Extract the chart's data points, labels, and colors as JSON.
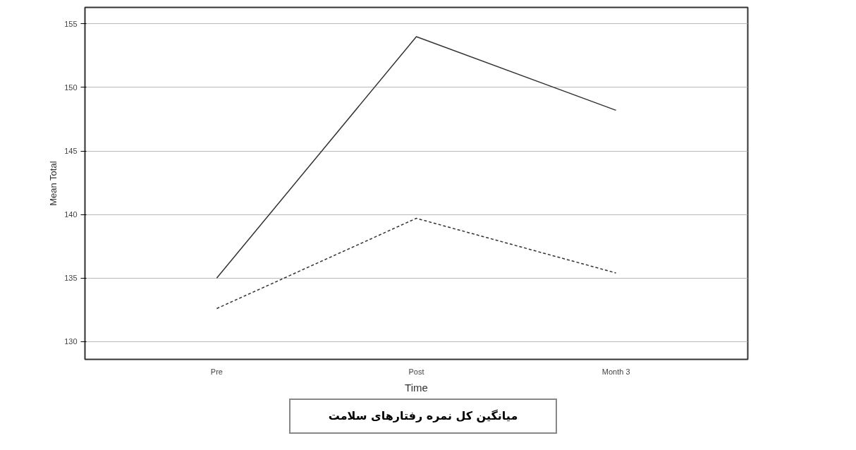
{
  "chart_data": {
    "type": "line",
    "xlabel": "Time",
    "ylabel": "Mean Total",
    "categories": [
      "Pre",
      "Post",
      "Month 3"
    ],
    "series": [
      {
        "color": "#333333",
        "line_style": "solid",
        "values": [
          135.0,
          154.0,
          148.2
        ]
      },
      {
        "color": "#333333",
        "line_style": "dashed",
        "values": [
          132.6,
          139.7,
          135.4
        ]
      }
    ],
    "ylim": [
      128.6,
      156.3
    ],
    "yticks": [
      130,
      135,
      140,
      145,
      150,
      155
    ],
    "grid": "y",
    "annotations": [
      "میانگین کل نمره رفتارهای سلامت"
    ]
  }
}
